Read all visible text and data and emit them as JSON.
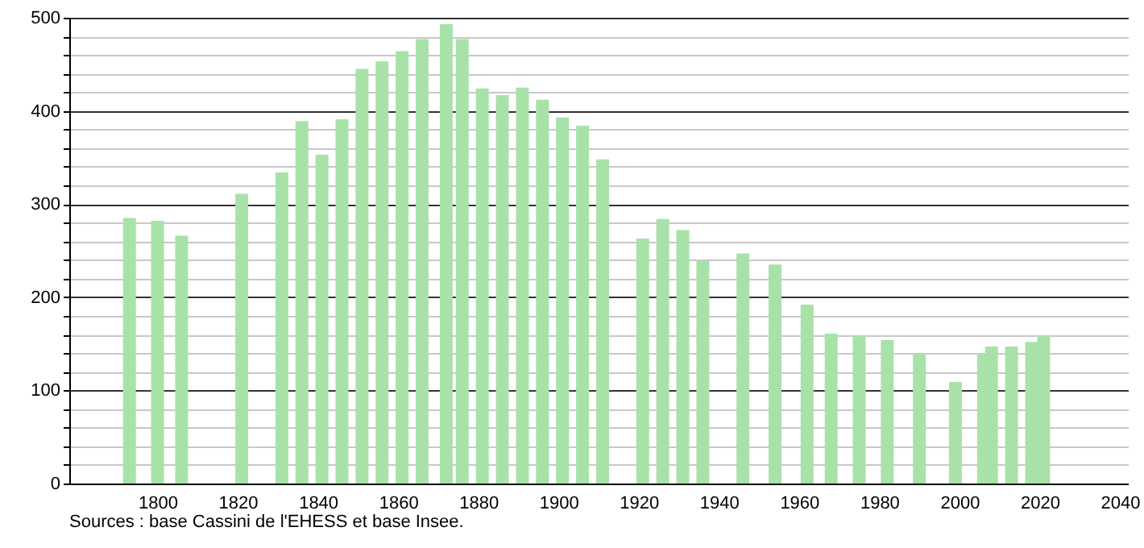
{
  "chart_data": {
    "type": "bar",
    "x": [
      1793,
      1800,
      1806,
      1821,
      1831,
      1836,
      1841,
      1846,
      1851,
      1856,
      1861,
      1866,
      1872,
      1876,
      1881,
      1886,
      1891,
      1896,
      1901,
      1906,
      1911,
      1921,
      1926,
      1931,
      1936,
      1946,
      1954,
      1962,
      1968,
      1975,
      1982,
      1990,
      1999,
      2006,
      2008,
      2013,
      2018,
      2021
    ],
    "values": [
      285,
      282,
      266,
      311,
      334,
      389,
      353,
      391,
      445,
      453,
      464,
      477,
      493,
      477,
      424,
      417,
      425,
      412,
      393,
      384,
      348,
      263,
      284,
      272,
      239,
      247,
      235,
      192,
      161,
      159,
      154,
      139,
      109,
      140,
      147,
      147,
      152,
      159
    ],
    "color": "#a8e2a8",
    "xlim": [
      1780,
      2040
    ],
    "xticks": [
      1800,
      1820,
      1840,
      1860,
      1880,
      1900,
      1920,
      1940,
      1960,
      1980,
      2000,
      2020,
      2040
    ],
    "ylim": [
      0,
      500
    ],
    "yticks": [
      0,
      {
        "value": 20,
        "label": null
      },
      {
        "value": 40,
        "label": null
      },
      {
        "value": 60,
        "label": null
      },
      {
        "value": 80,
        "label": null
      },
      100,
      {
        "value": 120,
        "label": null
      },
      {
        "value": 140,
        "label": null
      },
      {
        "value": 160,
        "label": null
      },
      {
        "value": 180,
        "label": null
      },
      200,
      {
        "value": 220,
        "label": null
      },
      {
        "value": 240,
        "label": null
      },
      {
        "value": 260,
        "label": null
      },
      {
        "value": 280,
        "label": null
      },
      300,
      {
        "value": 320,
        "label": null
      },
      {
        "value": 340,
        "label": null
      },
      {
        "value": 360,
        "label": null
      },
      {
        "value": 380,
        "label": null
      },
      400,
      {
        "value": 420,
        "label": null
      },
      {
        "value": 440,
        "label": null
      },
      {
        "value": 460,
        "label": null
      },
      {
        "value": 480,
        "label": null
      },
      500
    ],
    "grid": "y",
    "annotations": [
      "Sources : base Cassini de l'EHESS et base Insee."
    ]
  }
}
